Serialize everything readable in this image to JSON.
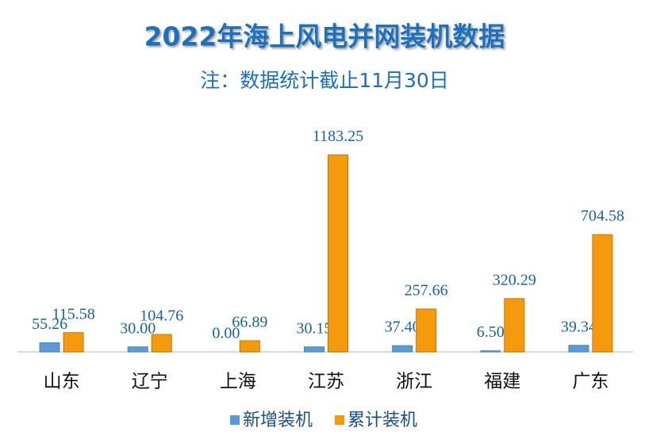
{
  "chart_data": {
    "type": "bar",
    "title": "2022年海上风电并网装机数据",
    "subtitle": "注：数据统计截止11月30日",
    "categories": [
      "山东",
      "辽宁",
      "上海",
      "江苏",
      "浙江",
      "福建",
      "广东"
    ],
    "series": [
      {
        "name": "新增装机",
        "color": "#5b9bd5",
        "values": [
          55.26,
          30,
          0,
          30.15,
          37.4,
          6.5,
          39.34
        ],
        "value_labels": [
          "55.26",
          "30.00",
          "0.00",
          "30.15",
          "37.40",
          "6.50",
          "39.34"
        ]
      },
      {
        "name": "累计装机",
        "color": "#f59a0c",
        "values": [
          115.58,
          104.76,
          66.89,
          1183.25,
          257.66,
          320.29,
          704.58
        ],
        "value_labels": [
          "115.58",
          "104.76",
          "66.89",
          "1183.25",
          "257.66",
          "320.29",
          "704.58"
        ]
      }
    ],
    "ylim": [
      0,
      1400
    ],
    "legend": "bottom"
  }
}
